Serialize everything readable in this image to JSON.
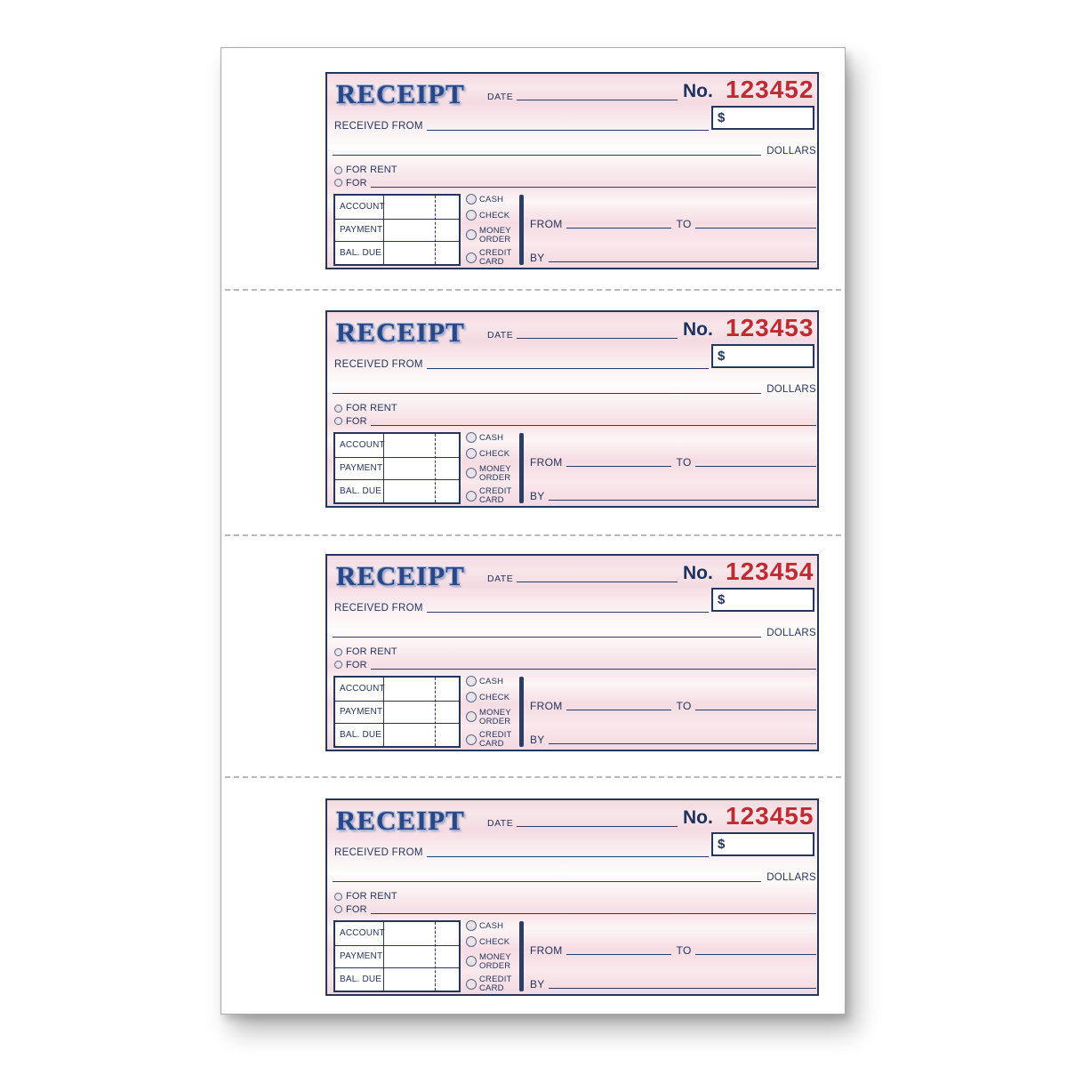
{
  "colors": {
    "form_navy": "#24355c",
    "title_blue": "#2b4686",
    "title_outline": "#9fb4d6",
    "number_red": "#bf2b33",
    "paper_pink": "#f5dce3",
    "sheet_white": "#ffffff",
    "table_border_navy": "#26365a",
    "circle_fill": "#dbd7df",
    "perforation_gray": "#b8b8b8"
  },
  "receipt_template": {
    "title": "RECEIPT",
    "date_label": "DATE",
    "no_label": "No.",
    "currency_symbol": "$",
    "received_from_label": "RECEIVED FROM",
    "dollars_label": "DOLLARS",
    "for_rent_label": "FOR RENT",
    "for_label": "FOR",
    "account_rows": [
      "ACCOUNT",
      "PAYMENT",
      "BAL. DUE"
    ],
    "payment_methods": [
      "CASH",
      "CHECK",
      "MONEY ORDER",
      "CREDIT CARD"
    ],
    "from_label": "FROM",
    "to_label": "TO",
    "by_label": "BY"
  },
  "receipts": [
    {
      "number": "123452"
    },
    {
      "number": "123453"
    },
    {
      "number": "123454"
    },
    {
      "number": "123455"
    }
  ],
  "layout_note": ""
}
